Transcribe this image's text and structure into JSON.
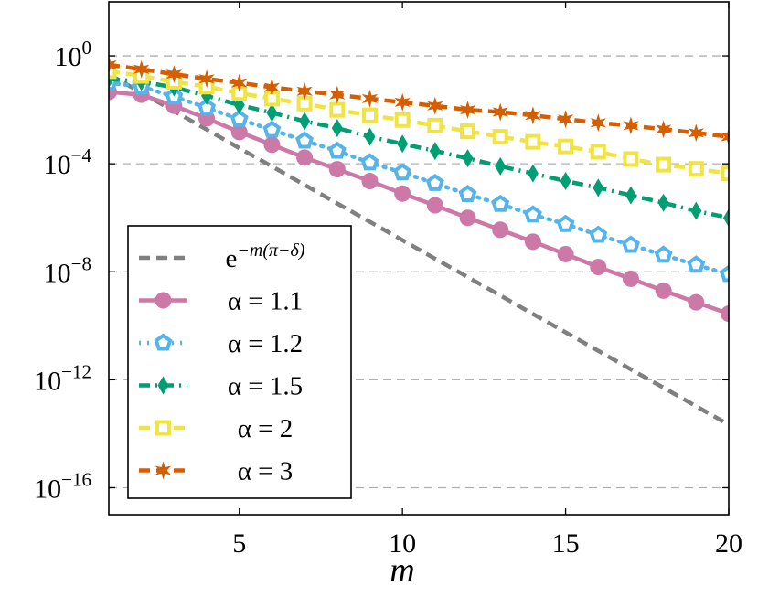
{
  "chart_data": {
    "type": "line",
    "x_label": "m",
    "log_y": true,
    "grid": "y",
    "x": [
      1,
      2,
      3,
      4,
      5,
      6,
      7,
      8,
      9,
      10,
      11,
      12,
      13,
      14,
      15,
      16,
      17,
      18,
      19,
      20
    ],
    "xlim": [
      1,
      20
    ],
    "xticks": [
      5,
      10,
      15,
      20
    ],
    "ylim": [
      1e-17,
      100
    ],
    "yticks": [
      {
        "value": 1,
        "label": "10",
        "exponent": "0"
      },
      {
        "value": 0.0001,
        "label": "10",
        "exponent": "−4"
      },
      {
        "value": 1e-08,
        "label": "10",
        "exponent": "−8"
      },
      {
        "value": 1e-12,
        "label": "10",
        "exponent": "−12"
      },
      {
        "value": 1e-16,
        "label": "10",
        "exponent": "−16"
      }
    ],
    "series": [
      {
        "name": "e",
        "name_exponent": "−m(π−δ)",
        "color": "#808080",
        "line_style": "dashed",
        "marker": "none",
        "values": [
          0.207,
          0.043,
          0.0089,
          0.00185,
          0.00038,
          8e-05,
          1.66e-05,
          3.4e-06,
          7.1e-07,
          1.48e-07,
          3.07e-08,
          6.4e-09,
          1.32e-09,
          2.74e-10,
          5.7e-11,
          1.18e-11,
          2.45e-12,
          5.1e-13,
          1.05e-13,
          2.19e-14
        ]
      },
      {
        "name": "α = 1.1",
        "color": "#cc79a7",
        "line_style": "solid",
        "marker": "circle",
        "values": [
          0.046,
          0.036,
          0.014,
          0.0048,
          0.0015,
          0.00051,
          0.00017,
          6.3e-05,
          2.3e-05,
          7.9e-06,
          2.9e-06,
          1e-06,
          3.6e-07,
          1.3e-07,
          4.5e-08,
          1.5e-08,
          5.5e-09,
          2e-09,
          7.4e-10,
          2.8e-10
        ]
      },
      {
        "name": "α = 1.2",
        "color": "#56b4e9",
        "line_style": "dotted",
        "marker": "pentagon",
        "values": [
          0.1,
          0.072,
          0.031,
          0.012,
          0.0045,
          0.0018,
          0.00071,
          0.0003,
          0.00011,
          4.7e-05,
          1.9e-05,
          7.4e-06,
          3.2e-06,
          1.3e-06,
          5.8e-07,
          2.3e-07,
          9.8e-08,
          4.2e-08,
          1.8e-08,
          8.1e-09
        ]
      },
      {
        "name": "α = 1.5",
        "color": "#009e73",
        "line_style": "dashdot",
        "marker": "diamond",
        "values": [
          0.14,
          0.11,
          0.068,
          0.033,
          0.015,
          0.0078,
          0.0038,
          0.0021,
          0.001,
          0.00055,
          0.0003,
          0.00016,
          8.1e-05,
          4.4e-05,
          2.3e-05,
          1.3e-05,
          6.8e-06,
          3.6e-06,
          1.8e-06,
          1e-06
        ]
      },
      {
        "name": "α = 2",
        "color": "#f0e442",
        "line_style": "dashed",
        "marker": "square",
        "values": [
          0.27,
          0.18,
          0.11,
          0.072,
          0.042,
          0.026,
          0.017,
          0.01,
          0.0062,
          0.0042,
          0.0026,
          0.0016,
          0.001,
          0.00065,
          0.00044,
          0.00028,
          0.00015,
          9.3e-05,
          6.5e-05,
          4.4e-05
        ]
      },
      {
        "name": "α = 3",
        "color": "#d55e00",
        "line_style": "dashed",
        "marker": "star",
        "values": [
          0.46,
          0.32,
          0.21,
          0.14,
          0.1,
          0.068,
          0.049,
          0.036,
          0.026,
          0.019,
          0.014,
          0.01,
          0.0083,
          0.0062,
          0.0045,
          0.0033,
          0.0026,
          0.0019,
          0.0014,
          0.001
        ]
      }
    ]
  }
}
